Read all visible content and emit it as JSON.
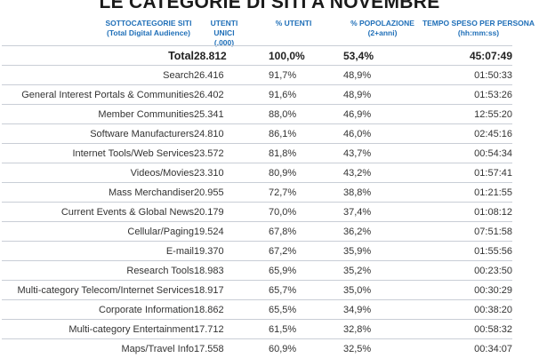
{
  "title": "LE CATEGORIE DI SITI A NOVEMBRE",
  "columns": {
    "category": [
      "SOTTOCATEGORIE SITI",
      "(Total Digital Audience)"
    ],
    "users": [
      "UTENTI UNICI",
      "(.000)"
    ],
    "pct_users": [
      "% UTENTI",
      ""
    ],
    "population": [
      "% POPOLAZIONE",
      "(2+anni)"
    ],
    "time": [
      "TEMPO SPESO PER PERSONA",
      "(hh:mm:ss)"
    ]
  },
  "rows": [
    {
      "category": "Total",
      "users": "28.812",
      "pct_users": "100,0%",
      "population": "53,4%",
      "time": "45:07:49"
    },
    {
      "category": "Search",
      "users": "26.416",
      "pct_users": "91,7%",
      "population": "48,9%",
      "time": "01:50:33"
    },
    {
      "category": "General Interest Portals & Communities",
      "users": "26.402",
      "pct_users": "91,6%",
      "population": "48,9%",
      "time": "01:53:26"
    },
    {
      "category": "Member Communities",
      "users": "25.341",
      "pct_users": "88,0%",
      "population": "46,9%",
      "time": "12:55:20"
    },
    {
      "category": "Software Manufacturers",
      "users": "24.810",
      "pct_users": "86,1%",
      "population": "46,0%",
      "time": "02:45:16"
    },
    {
      "category": "Internet Tools/Web Services",
      "users": "23.572",
      "pct_users": "81,8%",
      "population": "43,7%",
      "time": "00:54:34"
    },
    {
      "category": "Videos/Movies",
      "users": "23.310",
      "pct_users": "80,9%",
      "population": "43,2%",
      "time": "01:57:41"
    },
    {
      "category": "Mass Merchandiser",
      "users": "20.955",
      "pct_users": "72,7%",
      "population": "38,8%",
      "time": "01:21:55"
    },
    {
      "category": "Current Events & Global News",
      "users": "20.179",
      "pct_users": "70,0%",
      "population": "37,4%",
      "time": "01:08:12"
    },
    {
      "category": "Cellular/Paging",
      "users": "19.524",
      "pct_users": "67,8%",
      "population": "36,2%",
      "time": "07:51:58"
    },
    {
      "category": "E-mail",
      "users": "19.370",
      "pct_users": "67,2%",
      "population": "35,9%",
      "time": "01:55:56"
    },
    {
      "category": "Research Tools",
      "users": "18.983",
      "pct_users": "65,9%",
      "population": "35,2%",
      "time": "00:23:50"
    },
    {
      "category": "Multi-category Telecom/Internet Services",
      "users": "18.917",
      "pct_users": "65,7%",
      "population": "35,0%",
      "time": "00:30:29"
    },
    {
      "category": "Corporate Information",
      "users": "18.862",
      "pct_users": "65,5%",
      "population": "34,9%",
      "time": "00:38:20"
    },
    {
      "category": "Multi-category Entertainment",
      "users": "17.712",
      "pct_users": "61,5%",
      "population": "32,8%",
      "time": "00:58:32"
    },
    {
      "category": "Maps/Travel Info",
      "users": "17.558",
      "pct_users": "60,9%",
      "population": "32,5%",
      "time": "00:34:07"
    }
  ]
}
